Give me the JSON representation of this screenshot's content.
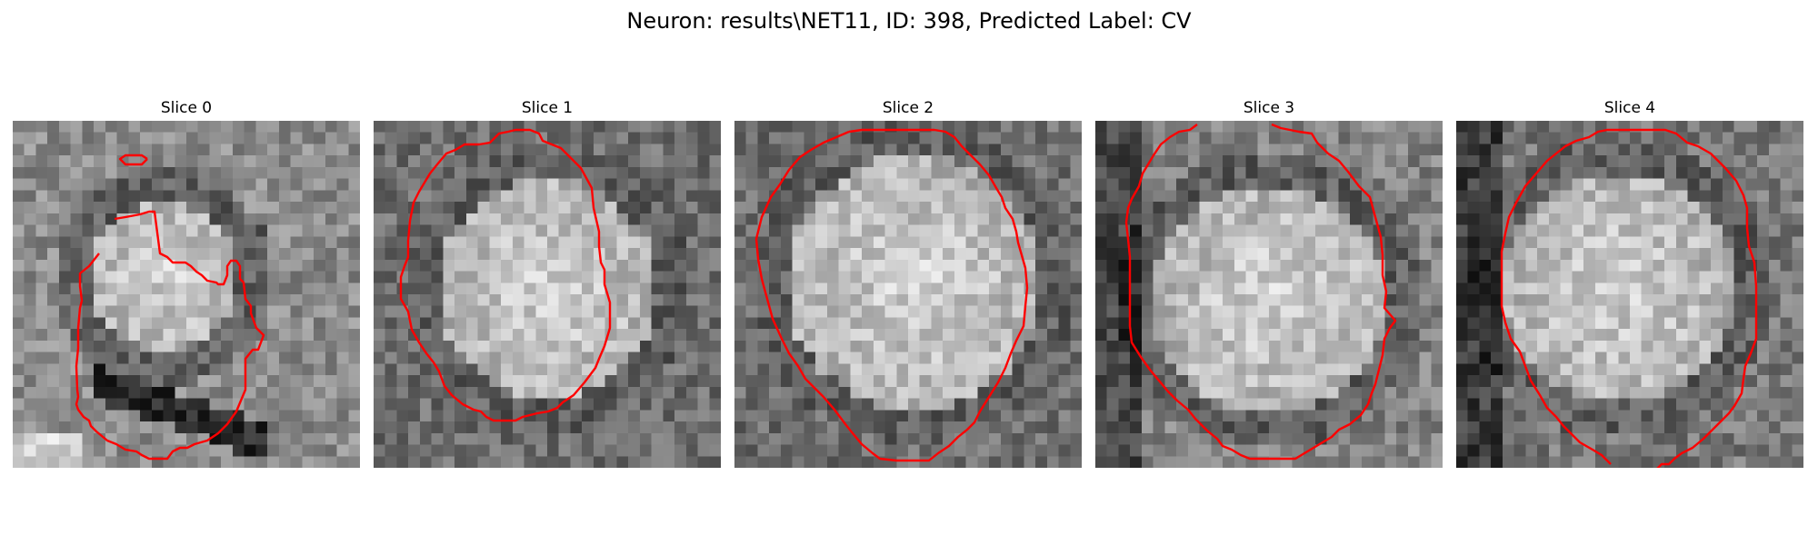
{
  "figure": {
    "title": "Neuron: results\\NET11, ID: 398, Predicted Label: CV"
  },
  "panels": [
    {
      "title": "Slice 0"
    },
    {
      "title": "Slice 1"
    },
    {
      "title": "Slice 2"
    },
    {
      "title": "Slice 3"
    },
    {
      "title": "Slice 4"
    }
  ],
  "colors": {
    "background": "#ffffff",
    "contour": "#ff0000",
    "image_colormap": "grayscale"
  }
}
